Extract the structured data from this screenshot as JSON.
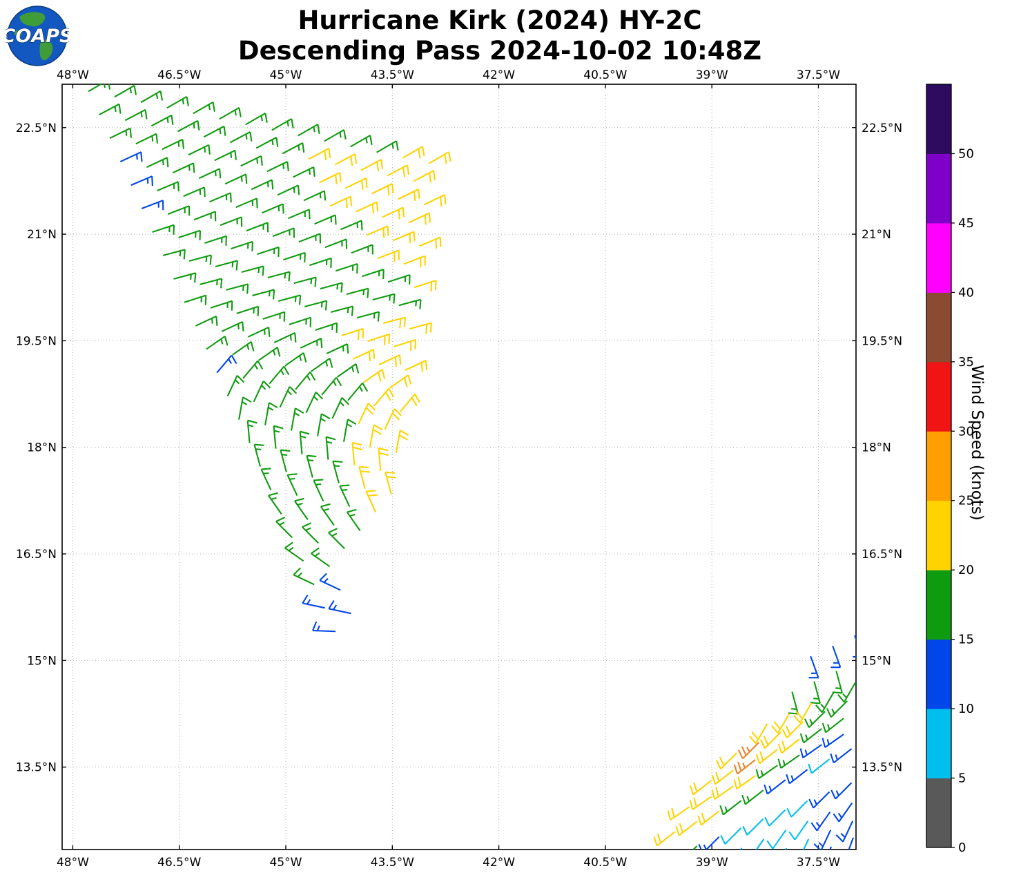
{
  "header": {
    "title_line1": "Hurricane Kirk (2024) HY-2C",
    "title_line2": "Descending Pass 2024-10-02 10:48Z",
    "logo_text": "COAPS"
  },
  "chart_data": {
    "type": "wind_barbs",
    "title": "Hurricane Kirk (2024) HY-2C — Descending Pass 2024-10-02 10:48Z",
    "colorbar_label": "Wind Speed (knots)",
    "axes": {
      "lon_min": -48.15,
      "lon_max": -36.97,
      "lat_min": 12.34,
      "lat_max": 23.11,
      "grid": true,
      "x_ticks": [
        {
          "v": -48.0,
          "label": "48°W"
        },
        {
          "v": -46.5,
          "label": "46.5°W"
        },
        {
          "v": -45.0,
          "label": "45°W"
        },
        {
          "v": -43.5,
          "label": "43.5°W"
        },
        {
          "v": -42.0,
          "label": "42°W"
        },
        {
          "v": -40.5,
          "label": "40.5°W"
        },
        {
          "v": -39.0,
          "label": "39°W"
        },
        {
          "v": -37.5,
          "label": "37.5°W"
        }
      ],
      "y_ticks": [
        {
          "v": 22.5,
          "label": "22.5°N"
        },
        {
          "v": 21.0,
          "label": "21°N"
        },
        {
          "v": 19.5,
          "label": "19.5°N"
        },
        {
          "v": 18.0,
          "label": "18°N"
        },
        {
          "v": 16.5,
          "label": "16.5°N"
        },
        {
          "v": 15.0,
          "label": "15°N"
        },
        {
          "v": 13.5,
          "label": "13.5°N"
        }
      ]
    },
    "colorbar": {
      "min": 0,
      "max": 55,
      "step": 5,
      "tick_labels": [
        "0",
        "5",
        "10",
        "15",
        "20",
        "25",
        "30",
        "35",
        "40",
        "45",
        "50"
      ],
      "colors_low_to_high": [
        "#595959",
        "#00bfef",
        "#0046e8",
        "#0f9b0f",
        "#ffd300",
        "#ff9e00",
        "#f01414",
        "#8b4a32",
        "#ff00ff",
        "#7f00c8",
        "#2e0b5e"
      ]
    },
    "color_hex": {
      "g": "#0f9b0f",
      "y": "#ffd300",
      "b": "#0046e8",
      "c": "#00bfef",
      "o": "#f08228"
    },
    "speed_knots_by_color": {
      "g": 17,
      "y": 22,
      "b": 13,
      "c": 8,
      "o": 27
    },
    "swaths": [
      {
        "name": "main-swath",
        "dlon": 0.369,
        "dlat": -0.078,
        "rows": [
          {
            "lon": -47.78,
            "lat": 23.01,
            "dir": 30,
            "cells": [
              [
                "g",
                12
              ],
              [
                "y",
                2
              ]
            ]
          },
          {
            "lon": -47.63,
            "lat": 22.68,
            "dir": 28,
            "cells": [
              [
                "g",
                8
              ],
              [
                "y",
                5
              ]
            ]
          },
          {
            "lon": -47.48,
            "lat": 22.35,
            "dir": 26,
            "cells": [
              [
                "g",
                8
              ],
              [
                "y",
                5
              ]
            ]
          },
          {
            "lon": -47.33,
            "lat": 22.02,
            "dir": 25,
            "cells": [
              [
                "b",
                1
              ],
              [
                "g",
                7
              ],
              [
                "y",
                4
              ]
            ]
          },
          {
            "lon": -47.18,
            "lat": 21.69,
            "dir": 23,
            "cells": [
              [
                "b",
                1
              ],
              [
                "g",
                8
              ],
              [
                "y",
                3
              ]
            ]
          },
          {
            "lon": -47.03,
            "lat": 21.36,
            "dir": 21,
            "cells": [
              [
                "b",
                1
              ],
              [
                "g",
                8
              ],
              [
                "y",
                2
              ]
            ]
          },
          {
            "lon": -46.88,
            "lat": 21.03,
            "dir": 18,
            "cells": [
              [
                "g",
                10
              ],
              [
                "y",
                1
              ]
            ]
          },
          {
            "lon": -46.73,
            "lat": 20.7,
            "dir": 15,
            "cells": [
              [
                "g",
                10
              ]
            ]
          },
          {
            "lon": -46.58,
            "lat": 20.37,
            "dir": 15,
            "cells": [
              [
                "g",
                8
              ],
              [
                "y",
                2
              ]
            ]
          },
          {
            "lon": -46.43,
            "lat": 20.04,
            "dir": 18,
            "cells": [
              [
                "g",
                6
              ],
              [
                "y",
                3
              ]
            ]
          },
          {
            "lon": -46.27,
            "lat": 19.71,
            "dir": 25,
            "cells": [
              [
                "g",
                6
              ],
              [
                "y",
                3
              ]
            ]
          },
          {
            "lon": -46.12,
            "lat": 19.38,
            "dir": 35,
            "cells": [
              [
                "g",
                6
              ],
              [
                "y",
                2
              ]
            ]
          },
          {
            "lon": -45.97,
            "lat": 19.05,
            "dir": 50,
            "cells": [
              [
                "b",
                1
              ],
              [
                "g",
                5
              ],
              [
                "y",
                2
              ]
            ]
          },
          {
            "lon": -45.82,
            "lat": 18.72,
            "dir": 65,
            "cells": [
              [
                "g",
                5
              ],
              [
                "y",
                2
              ]
            ]
          },
          {
            "lon": -45.66,
            "lat": 18.39,
            "dir": 80,
            "cells": [
              [
                "g",
                5
              ],
              [
                "y",
                2
              ]
            ]
          },
          {
            "lon": -45.51,
            "lat": 18.06,
            "dir": 95,
            "cells": [
              [
                "g",
                4
              ],
              [
                "y",
                2
              ]
            ]
          },
          {
            "lon": -45.36,
            "lat": 17.73,
            "dir": 105,
            "cells": [
              [
                "g",
                4
              ],
              [
                "y",
                2
              ]
            ]
          },
          {
            "lon": -45.21,
            "lat": 17.4,
            "dir": 115,
            "cells": [
              [
                "g",
                4
              ],
              [
                "y",
                1
              ]
            ]
          },
          {
            "lon": -45.06,
            "lat": 17.06,
            "dir": 125,
            "cells": [
              [
                "g",
                4
              ]
            ]
          },
          {
            "lon": -44.91,
            "lat": 16.73,
            "dir": 135,
            "cells": [
              [
                "g",
                3
              ]
            ]
          },
          {
            "lon": -44.75,
            "lat": 16.4,
            "dir": 145,
            "cells": [
              [
                "g",
                2
              ]
            ]
          },
          {
            "lon": -44.6,
            "lat": 16.07,
            "dir": 155,
            "cells": [
              [
                "g",
                1
              ],
              [
                "b",
                1
              ]
            ]
          },
          {
            "lon": -44.45,
            "lat": 15.74,
            "dir": 168,
            "cells": [
              [
                "b",
                2
              ]
            ]
          },
          {
            "lon": -44.3,
            "lat": 15.41,
            "dir": 178,
            "cells": [
              [
                "b",
                1
              ]
            ]
          }
        ]
      },
      {
        "name": "southeast-swath",
        "dlon": 0.311,
        "dlat": 0.146,
        "rows": [
          {
            "lon": -37.61,
            "lat": 15.06,
            "dir": 290,
            "cells": [
              [
                "b",
                3
              ]
            ]
          },
          {
            "lon": -37.87,
            "lat": 14.56,
            "dir": 285,
            "cells": [
              [
                "g",
                3
              ]
            ]
          },
          {
            "lon": -38.22,
            "lat": 14.11,
            "dir": 240,
            "cells": [
              [
                "y",
                3
              ],
              [
                "g",
                2
              ]
            ]
          },
          {
            "lon": -38.65,
            "lat": 13.7,
            "dir": 225,
            "cells": [
              [
                "y",
                1
              ],
              [
                "o",
                1
              ],
              [
                "y",
                2
              ],
              [
                "g",
                2
              ]
            ]
          },
          {
            "lon": -39.01,
            "lat": 13.31,
            "dir": 218,
            "cells": [
              [
                "y",
                2
              ],
              [
                "o",
                1
              ],
              [
                "y",
                2
              ],
              [
                "g",
                2
              ]
            ]
          },
          {
            "lon": -39.32,
            "lat": 12.94,
            "dir": 215,
            "cells": [
              [
                "y",
                4
              ],
              [
                "g",
                2
              ],
              [
                "b",
                2
              ]
            ]
          },
          {
            "lon": -39.52,
            "lat": 12.59,
            "dir": 218,
            "cells": [
              [
                "y",
                3
              ],
              [
                "g",
                2
              ],
              [
                "b",
                2
              ],
              [
                "c",
                1
              ],
              [
                "b",
                1
              ]
            ]
          },
          {
            "lon": -39.21,
            "lat": 12.39,
            "dir": 225,
            "dlat": 0.127,
            "cells": [
              [
                "g",
                1
              ],
              [
                "b",
                1
              ],
              [
                "c",
                4
              ],
              [
                "b",
                2
              ]
            ]
          },
          {
            "lon": -38.58,
            "lat": 12.36,
            "dir": 235,
            "dlat": 0.127,
            "cells": [
              [
                "c",
                4
              ],
              [
                "b",
                2
              ]
            ]
          },
          {
            "lon": -37.95,
            "lat": 12.36,
            "dir": 245,
            "dlat": 0.127,
            "cells": [
              [
                "c",
                2
              ],
              [
                "b",
                2
              ]
            ]
          },
          {
            "lon": -37.32,
            "lat": 12.38,
            "dir": 250,
            "dlat": 0.127,
            "cells": [
              [
                "b",
                2
              ]
            ]
          }
        ]
      }
    ]
  }
}
